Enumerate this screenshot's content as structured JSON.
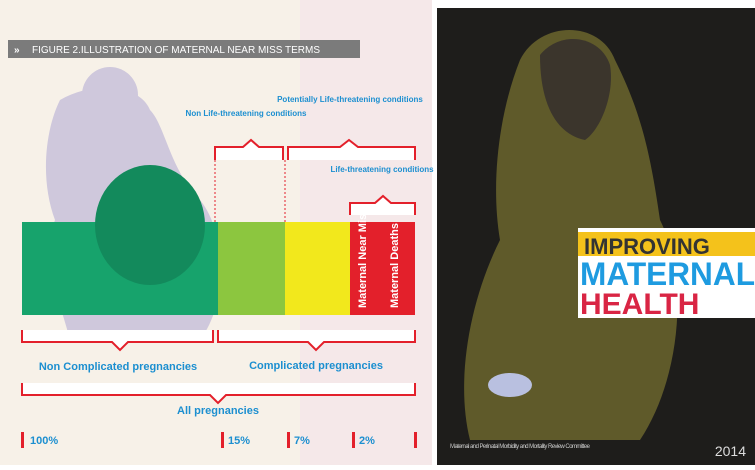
{
  "figure": {
    "title": "FIGURE 2.ILLUSTRATION OF MATERNAL NEAR MISS TERMS",
    "top_labels": [
      "Non Life-threatening conditions",
      "Potentially Life-threatening conditions",
      "Life-threatening conditions"
    ],
    "bar_labels": [
      "Maternal Near Miss",
      "Maternal Deaths"
    ],
    "bottom_labels": [
      "Non Complicated pregnancies",
      "Complicated pregnancies",
      "All pregnancies"
    ],
    "scale": [
      "100%",
      "15%",
      "7%",
      "2%"
    ]
  },
  "cover": {
    "title_lines": [
      "IMPROVING",
      "MATERNAL",
      "HEALTH"
    ],
    "footer": "Maternal and Perinatal Morbidity and Mortality Review Committee",
    "year": "2014"
  }
}
